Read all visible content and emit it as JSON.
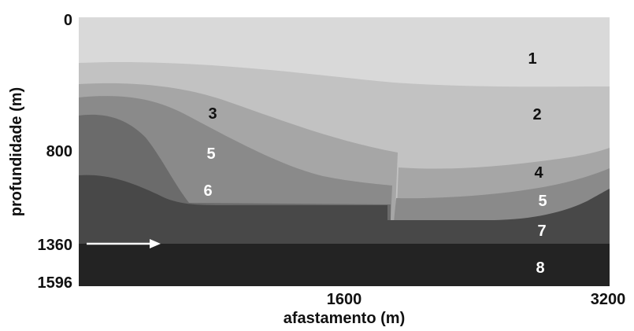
{
  "axes": {
    "x_title": "afastamento (m)",
    "y_title": "profundidade (m)",
    "x_ticks": [
      "1600",
      "3200"
    ],
    "y_ticks": [
      "0",
      "800",
      "1360",
      "1596"
    ]
  },
  "layer_labels": [
    "1",
    "2",
    "3",
    "4",
    "5",
    "5",
    "6",
    "7",
    "8"
  ],
  "colors": {
    "layer_1": "#d9d9d9",
    "layer_2": "#c2c2c2",
    "layer_3": "#a6a6a6",
    "layer_4": "#a6a6a6",
    "layer_5": "#8a8a8a",
    "layer_6": "#6b6b6b",
    "layer_7": "#484848",
    "layer_8": "#232323",
    "arrow": "#ffffff"
  }
}
